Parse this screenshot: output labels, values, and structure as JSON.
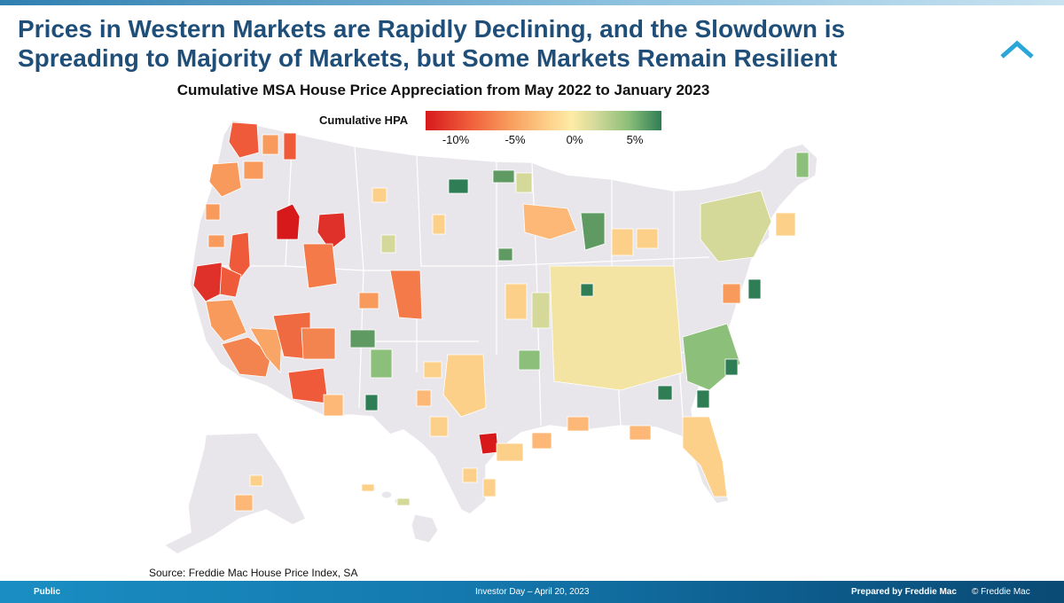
{
  "slide": {
    "title": "Prices in Western Markets are Rapidly Declining, and the Slowdown is Spreading to Majority of Markets, but Some Markets Remain Resilient",
    "subtitle": "Cumulative MSA House Price Appreciation from May 2022 to January 2023",
    "source": "Source: Freddie Mac House Price Index, SA"
  },
  "legend": {
    "title": "Cumulative HPA",
    "ticks": [
      "-10%",
      "-5%",
      "0%",
      "5%"
    ],
    "colors": [
      "#d7191c",
      "#ef5b3a",
      "#f79a5b",
      "#fdd08a",
      "#fdeca6",
      "#d4d99a",
      "#8cbf79",
      "#2f7d55"
    ]
  },
  "footer": {
    "classification": "Public",
    "event": "Investor Day – April 20, 2023",
    "prepared": "Prepared by Freddie Mac",
    "copyright": "© Freddie Mac"
  },
  "colors": {
    "title": "#1f4e79",
    "land": "#e8e6ea",
    "border": "#ffffff",
    "footer_start": "#1a8ec2",
    "footer_end": "#0a4a75"
  },
  "map": {
    "regions": [
      {
        "id": "seattle",
        "hpa": -9.5
      },
      {
        "id": "portland",
        "hpa": -8.0
      },
      {
        "id": "boise",
        "hpa": -12.5
      },
      {
        "id": "salt-lake",
        "hpa": -11.0
      },
      {
        "id": "reno",
        "hpa": -8.5
      },
      {
        "id": "sf-bay",
        "hpa": -10.5
      },
      {
        "id": "sacramento",
        "hpa": -9.0
      },
      {
        "id": "central-ca",
        "hpa": -6.0
      },
      {
        "id": "los-angeles",
        "hpa": -6.5
      },
      {
        "id": "las-vegas",
        "hpa": -9.0
      },
      {
        "id": "phoenix",
        "hpa": -10.0
      },
      {
        "id": "tucson",
        "hpa": -7.5
      },
      {
        "id": "denver",
        "hpa": -7.0
      },
      {
        "id": "new-mexico",
        "hpa": 4.0
      },
      {
        "id": "el-paso",
        "hpa": 5.5
      },
      {
        "id": "austin",
        "hpa": -11.5
      },
      {
        "id": "texas",
        "hpa": -2.0
      },
      {
        "id": "midwest",
        "hpa": 1.5
      },
      {
        "id": "chicago",
        "hpa": 3.5
      },
      {
        "id": "northeast",
        "hpa": 2.5
      },
      {
        "id": "florida",
        "hpa": -1.5
      },
      {
        "id": "carolinas",
        "hpa": 5.5
      },
      {
        "id": "southeast",
        "hpa": 0.5
      }
    ]
  }
}
